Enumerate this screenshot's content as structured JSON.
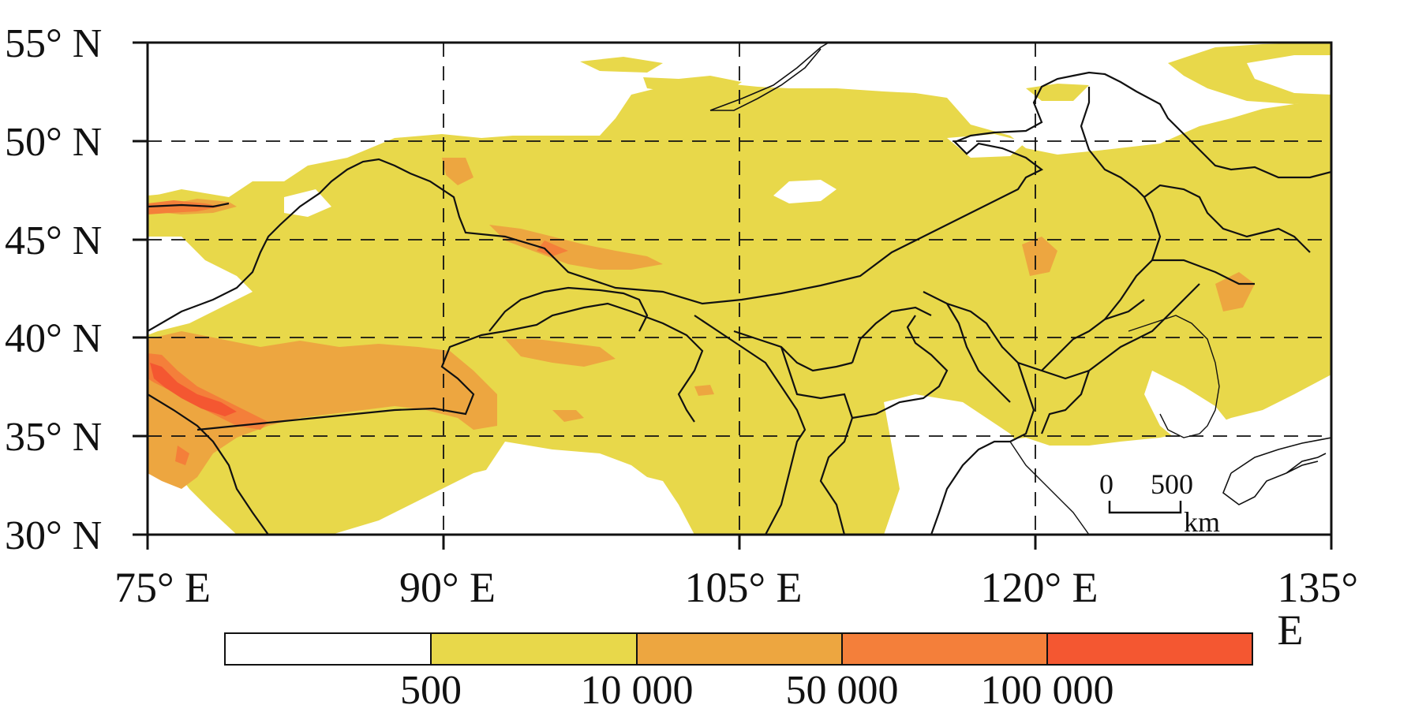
{
  "map": {
    "y_axis_labels": [
      "55° N",
      "50° N",
      "45° N",
      "40° N",
      "35° N",
      "30° N"
    ],
    "x_axis_labels": [
      "75° E",
      "90° E",
      "105° E",
      "120° E",
      "135° E"
    ],
    "lat_range": [
      30,
      55
    ],
    "lon_range": [
      75,
      135
    ],
    "gridlines": "dashed",
    "scale_bar": {
      "start": "0",
      "end": "500",
      "unit": "km"
    }
  },
  "legend": {
    "breaks": [
      "500",
      "10 000",
      "50 000",
      "100 000"
    ],
    "colors": [
      "#ffffff",
      "#e8d84a",
      "#eda640",
      "#f47f3a",
      "#f45731"
    ]
  },
  "colors": {
    "class_1": "#e8d84a",
    "class_2": "#eda640",
    "class_3": "#f47f3a",
    "class_4": "#f45731",
    "boundary": "#111111"
  }
}
